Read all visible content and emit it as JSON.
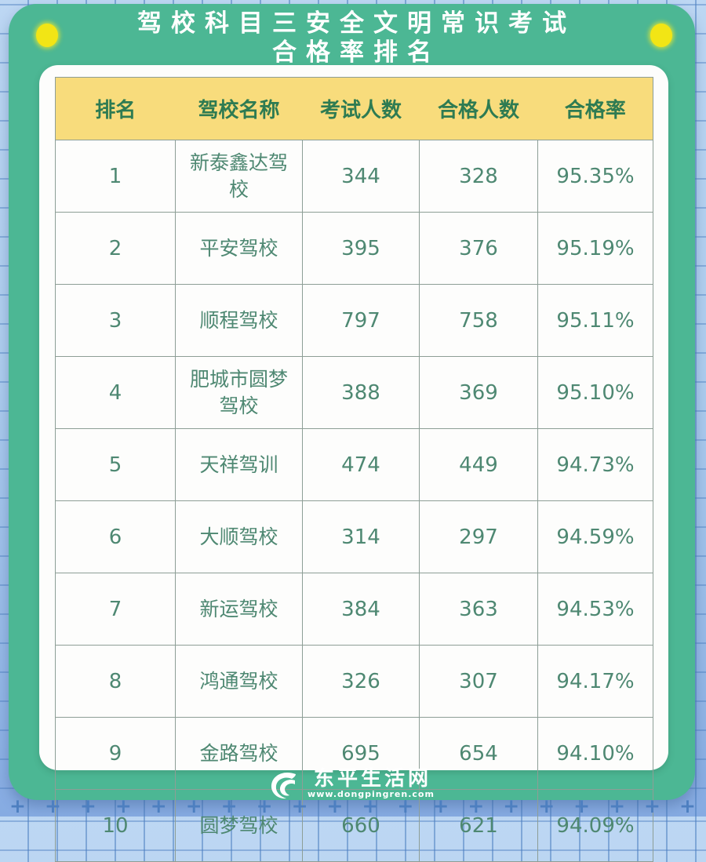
{
  "header": {
    "title_line1": "驾校科目三安全文明常识考试",
    "title_line2": "合格率排名"
  },
  "chart_data": {
    "type": "table",
    "title": "驾校科目三安全文明常识考试合格率排名",
    "columns": [
      "排名",
      "驾校名称",
      "考试人数",
      "合格人数",
      "合格率"
    ],
    "rows": [
      [
        "1",
        "新泰鑫达驾校",
        "344",
        "328",
        "95.35%"
      ],
      [
        "2",
        "平安驾校",
        "395",
        "376",
        "95.19%"
      ],
      [
        "3",
        "顺程驾校",
        "797",
        "758",
        "95.11%"
      ],
      [
        "4",
        "肥城市圆梦驾校",
        "388",
        "369",
        "95.10%"
      ],
      [
        "5",
        "天祥驾训",
        "474",
        "449",
        "94.73%"
      ],
      [
        "6",
        "大顺驾校",
        "314",
        "297",
        "94.59%"
      ],
      [
        "7",
        "新运驾校",
        "384",
        "363",
        "94.53%"
      ],
      [
        "8",
        "鸿通驾校",
        "326",
        "307",
        "94.17%"
      ],
      [
        "9",
        "金路驾校",
        "695",
        "654",
        "94.10%"
      ],
      [
        "10",
        "圆梦驾校",
        "660",
        "621",
        "94.09%"
      ]
    ]
  },
  "footer": {
    "site_name": "东平生活网",
    "site_url": "www.dongpingren.com"
  },
  "colors": {
    "card_green": "#4cb794",
    "header_yellow": "#f8dc7c",
    "header_text_green": "#2e7b52",
    "cell_text_green": "#4e8872",
    "pin_yellow": "#f2e515",
    "background_blue_top": "#bdd7f3",
    "background_blue_bottom": "#86abe2",
    "grid_line_blue": "#4d7fc0",
    "border_gray": "#8d9e96"
  },
  "decor": {
    "plus_marks": "+++++++++++++++++++++++"
  }
}
